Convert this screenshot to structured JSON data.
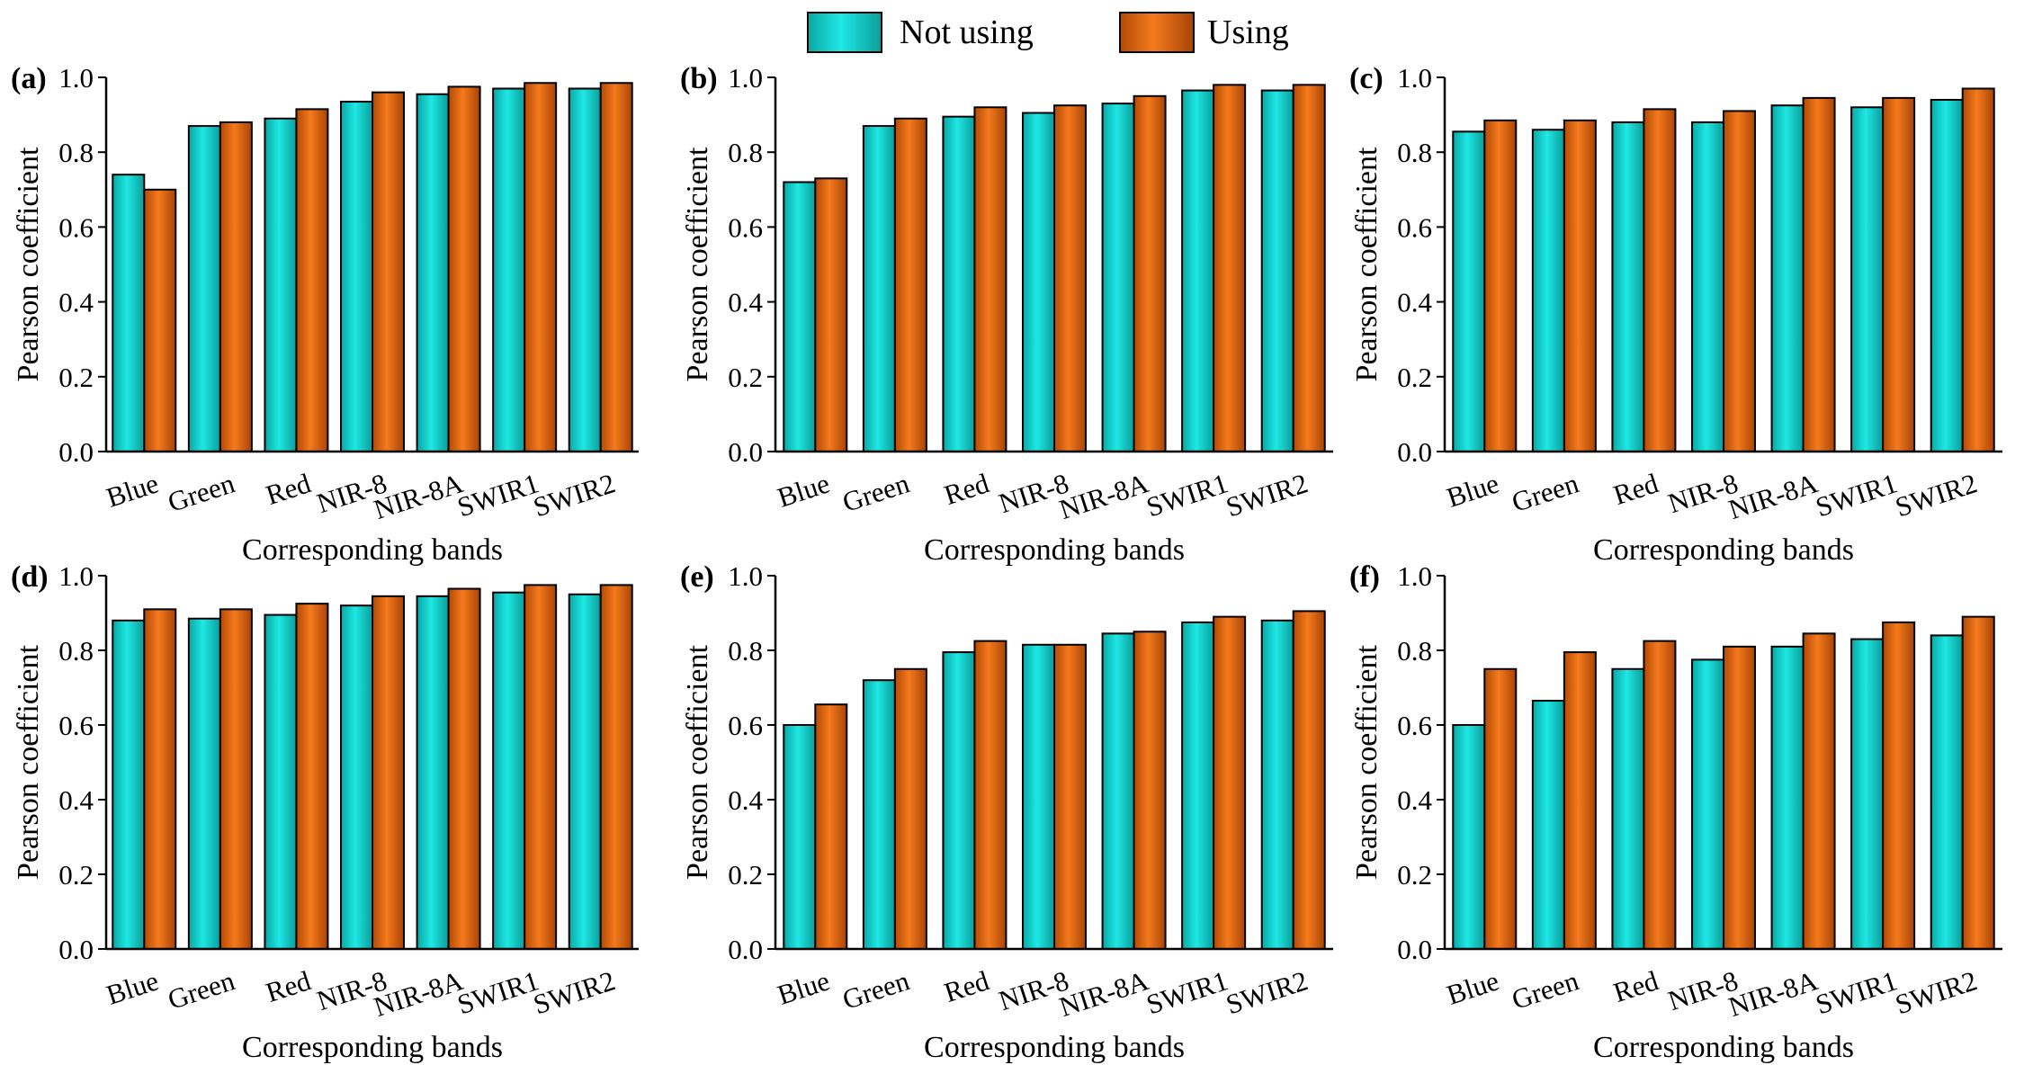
{
  "legend": {
    "series": [
      {
        "name": "Not using",
        "color": "#17d6d2"
      },
      {
        "name": "Using",
        "color": "#ec6a10"
      }
    ]
  },
  "chart_data": [
    {
      "type": "bar",
      "panel_label": "(a)",
      "categories": [
        "Blue",
        "Green",
        "Red",
        "NIR-8",
        "NIR-8A",
        "SWIR1",
        "SWIR2"
      ],
      "series": [
        {
          "name": "Not using",
          "values": [
            0.74,
            0.87,
            0.89,
            0.935,
            0.955,
            0.97,
            0.97
          ]
        },
        {
          "name": "Using",
          "values": [
            0.7,
            0.88,
            0.915,
            0.96,
            0.975,
            0.985,
            0.985
          ]
        }
      ],
      "xlabel": "Corresponding bands",
      "ylabel": "Pearson coefficient",
      "ylim": [
        0,
        1.0
      ],
      "yticks": [
        "0.0",
        "0.2",
        "0.4",
        "0.6",
        "0.8",
        "1.0"
      ]
    },
    {
      "type": "bar",
      "panel_label": "(b)",
      "categories": [
        "Blue",
        "Green",
        "Red",
        "NIR-8",
        "NIR-8A",
        "SWIR1",
        "SWIR2"
      ],
      "series": [
        {
          "name": "Not using",
          "values": [
            0.72,
            0.87,
            0.895,
            0.905,
            0.93,
            0.965,
            0.965
          ]
        },
        {
          "name": "Using",
          "values": [
            0.73,
            0.89,
            0.92,
            0.925,
            0.95,
            0.98,
            0.98
          ]
        }
      ],
      "xlabel": "Corresponding bands",
      "ylabel": "Pearson coefficient",
      "ylim": [
        0,
        1.0
      ],
      "yticks": [
        "0.0",
        "0.2",
        "0.4",
        "0.6",
        "0.8",
        "1.0"
      ]
    },
    {
      "type": "bar",
      "panel_label": "(c)",
      "categories": [
        "Blue",
        "Green",
        "Red",
        "NIR-8",
        "NIR-8A",
        "SWIR1",
        "SWIR2"
      ],
      "series": [
        {
          "name": "Not using",
          "values": [
            0.855,
            0.86,
            0.88,
            0.88,
            0.925,
            0.92,
            0.94
          ]
        },
        {
          "name": "Using",
          "values": [
            0.885,
            0.885,
            0.915,
            0.91,
            0.945,
            0.945,
            0.97
          ]
        }
      ],
      "xlabel": "Corresponding bands",
      "ylabel": "Pearson coefficient",
      "ylim": [
        0,
        1.0
      ],
      "yticks": [
        "0.0",
        "0.2",
        "0.4",
        "0.6",
        "0.8",
        "1.0"
      ]
    },
    {
      "type": "bar",
      "panel_label": "(d)",
      "categories": [
        "Blue",
        "Green",
        "Red",
        "NIR-8",
        "NIR-8A",
        "SWIR1",
        "SWIR2"
      ],
      "series": [
        {
          "name": "Not using",
          "values": [
            0.88,
            0.885,
            0.895,
            0.92,
            0.945,
            0.955,
            0.95
          ]
        },
        {
          "name": "Using",
          "values": [
            0.91,
            0.91,
            0.925,
            0.945,
            0.965,
            0.975,
            0.975
          ]
        }
      ],
      "xlabel": "Corresponding bands",
      "ylabel": "Pearson coefficient",
      "ylim": [
        0,
        1.0
      ],
      "yticks": [
        "0.0",
        "0.2",
        "0.4",
        "0.6",
        "0.8",
        "1.0"
      ]
    },
    {
      "type": "bar",
      "panel_label": "(e)",
      "categories": [
        "Blue",
        "Green",
        "Red",
        "NIR-8",
        "NIR-8A",
        "SWIR1",
        "SWIR2"
      ],
      "series": [
        {
          "name": "Not using",
          "values": [
            0.6,
            0.72,
            0.795,
            0.815,
            0.845,
            0.875,
            0.88
          ]
        },
        {
          "name": "Using",
          "values": [
            0.655,
            0.75,
            0.825,
            0.815,
            0.85,
            0.89,
            0.905
          ]
        }
      ],
      "xlabel": "Corresponding bands",
      "ylabel": "Pearson coefficient",
      "ylim": [
        0,
        1.0
      ],
      "yticks": [
        "0.0",
        "0.2",
        "0.4",
        "0.6",
        "0.8",
        "1.0"
      ]
    },
    {
      "type": "bar",
      "panel_label": "(f)",
      "categories": [
        "Blue",
        "Green",
        "Red",
        "NIR-8",
        "NIR-8A",
        "SWIR1",
        "SWIR2"
      ],
      "series": [
        {
          "name": "Not using",
          "values": [
            0.6,
            0.665,
            0.75,
            0.775,
            0.81,
            0.83,
            0.84
          ]
        },
        {
          "name": "Using",
          "values": [
            0.75,
            0.795,
            0.825,
            0.81,
            0.845,
            0.875,
            0.89
          ]
        }
      ],
      "xlabel": "Corresponding bands",
      "ylabel": "Pearson coefficient",
      "ylim": [
        0,
        1.0
      ],
      "yticks": [
        "0.0",
        "0.2",
        "0.4",
        "0.6",
        "0.8",
        "1.0"
      ]
    }
  ]
}
